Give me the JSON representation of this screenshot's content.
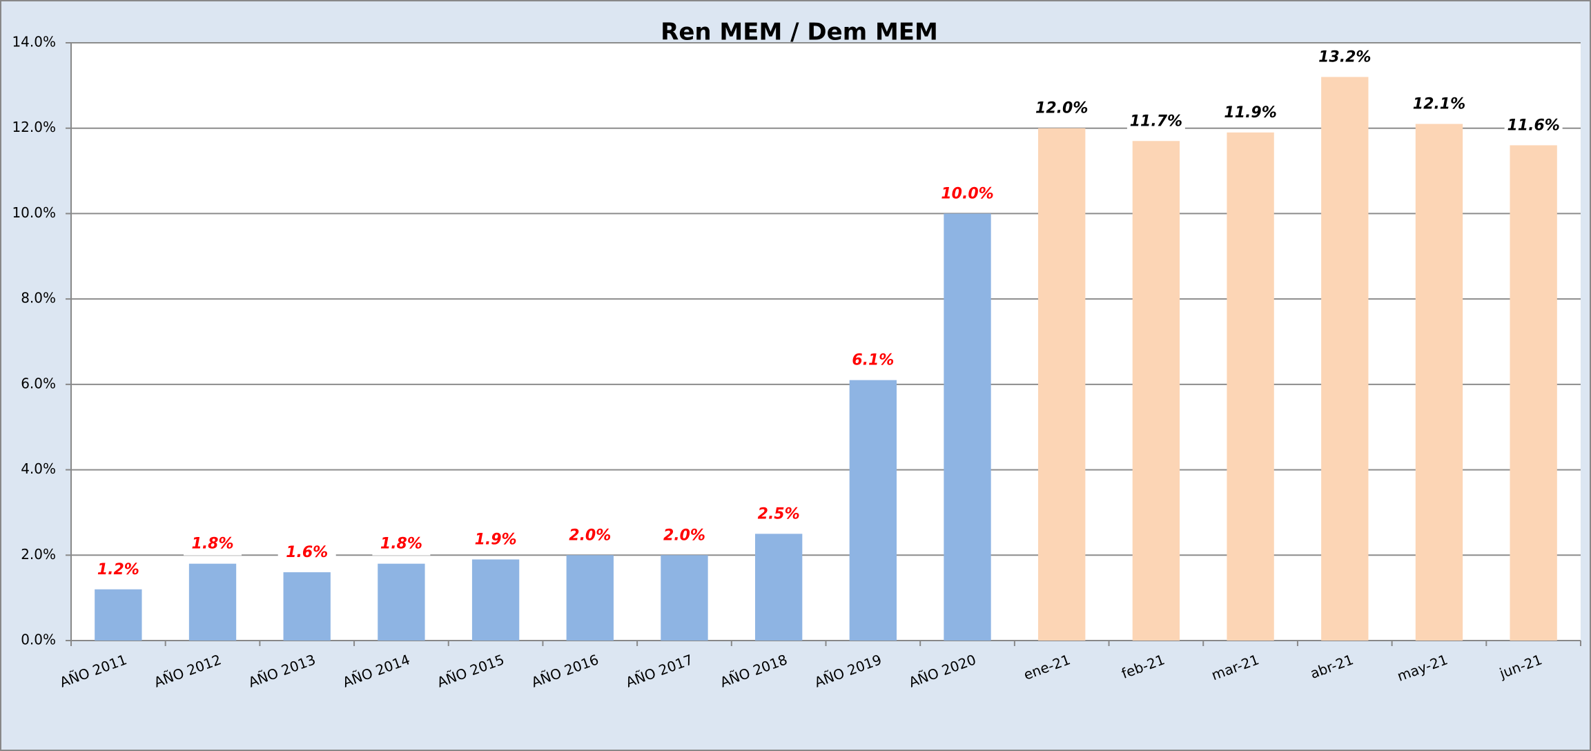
{
  "chart_data": {
    "type": "bar",
    "title": "Ren MEM / Dem MEM",
    "categories": [
      "AÑO 2011",
      "AÑO 2012",
      "AÑO 2013",
      "AÑO 2014",
      "AÑO 2015",
      "AÑO 2016",
      "AÑO 2017",
      "AÑO 2018",
      "AÑO 2019",
      "AÑO 2020",
      "ene-21",
      "feb-21",
      "mar-21",
      "abr-21",
      "may-21",
      "jun-21"
    ],
    "values": [
      1.2,
      1.8,
      1.6,
      1.8,
      1.9,
      2.0,
      2.0,
      2.5,
      6.1,
      10.0,
      12.0,
      11.7,
      11.9,
      13.2,
      12.1,
      11.6
    ],
    "value_labels": [
      "1.2%",
      "1.8%",
      "1.6%",
      "1.8%",
      "1.9%",
      "2.0%",
      "2.0%",
      "2.5%",
      "6.1%",
      "10.0%",
      "12.0%",
      "11.7%",
      "11.9%",
      "13.2%",
      "12.1%",
      "11.6%"
    ],
    "colors": [
      "#8eb4e3",
      "#8eb4e3",
      "#8eb4e3",
      "#8eb4e3",
      "#8eb4e3",
      "#8eb4e3",
      "#8eb4e3",
      "#8eb4e3",
      "#8eb4e3",
      "#8eb4e3",
      "#fcd5b5",
      "#fcd5b5",
      "#fcd5b5",
      "#fcd5b5",
      "#fcd5b5",
      "#fcd5b5"
    ],
    "value_label_colors": [
      "#ff0000",
      "#ff0000",
      "#ff0000",
      "#ff0000",
      "#ff0000",
      "#ff0000",
      "#ff0000",
      "#ff0000",
      "#ff0000",
      "#ff0000",
      "#000000",
      "#000000",
      "#000000",
      "#000000",
      "#000000",
      "#000000"
    ],
    "ylim": [
      0,
      14
    ],
    "yticks": [
      {
        "value": 0,
        "label": "0.0%"
      },
      {
        "value": 2,
        "label": "2.0%"
      },
      {
        "value": 4,
        "label": "4.0%"
      },
      {
        "value": 6,
        "label": "6.0%"
      },
      {
        "value": 8,
        "label": "8.0%"
      },
      {
        "value": 10,
        "label": "10.0%"
      },
      {
        "value": 12,
        "label": "12.0%"
      },
      {
        "value": 14,
        "label": "14.0%"
      }
    ],
    "grid": true
  }
}
